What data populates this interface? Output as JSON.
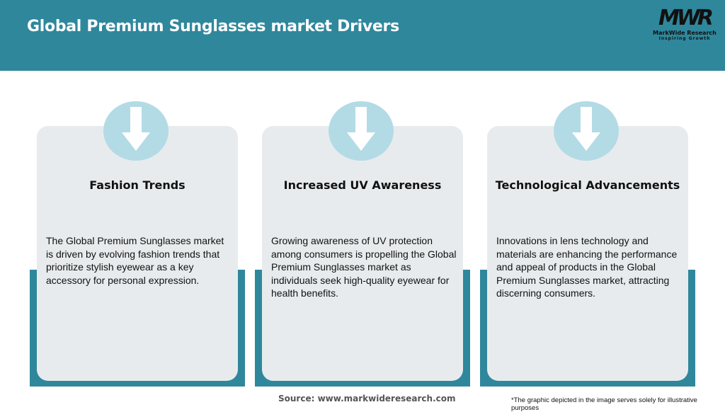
{
  "header": {
    "title": "Global Premium Sunglasses market Drivers"
  },
  "logo": {
    "mark": "MWR",
    "name": "MarkWide Research",
    "tagline": "Inspiring Growth"
  },
  "cards": [
    {
      "icon": "arrow-down-icon",
      "title": "Fashion Trends",
      "body": "The Global Premium Sunglasses market is driven by evolving fashion trends that prioritize stylish eyewear as a key accessory for personal expression."
    },
    {
      "icon": "arrow-down-icon",
      "title": "Increased UV Awareness",
      "body": "Growing awareness of UV protection among consumers is propelling the Global Premium Sunglasses market as individuals seek high-quality eyewear for health benefits."
    },
    {
      "icon": "arrow-down-icon",
      "title": "Technological Advancements",
      "body": "Innovations in lens technology and materials are enhancing the performance and appeal of products in the Global Premium Sunglasses market, attracting discerning consumers."
    }
  ],
  "footer": {
    "source": "Source: www.markwideresearch.com",
    "note": "*The graphic depicted in the image serves solely for illustrative purposes"
  },
  "colors": {
    "accent": "#2f879c",
    "card": "#e8ebed",
    "circle": "#b3dbe6"
  }
}
